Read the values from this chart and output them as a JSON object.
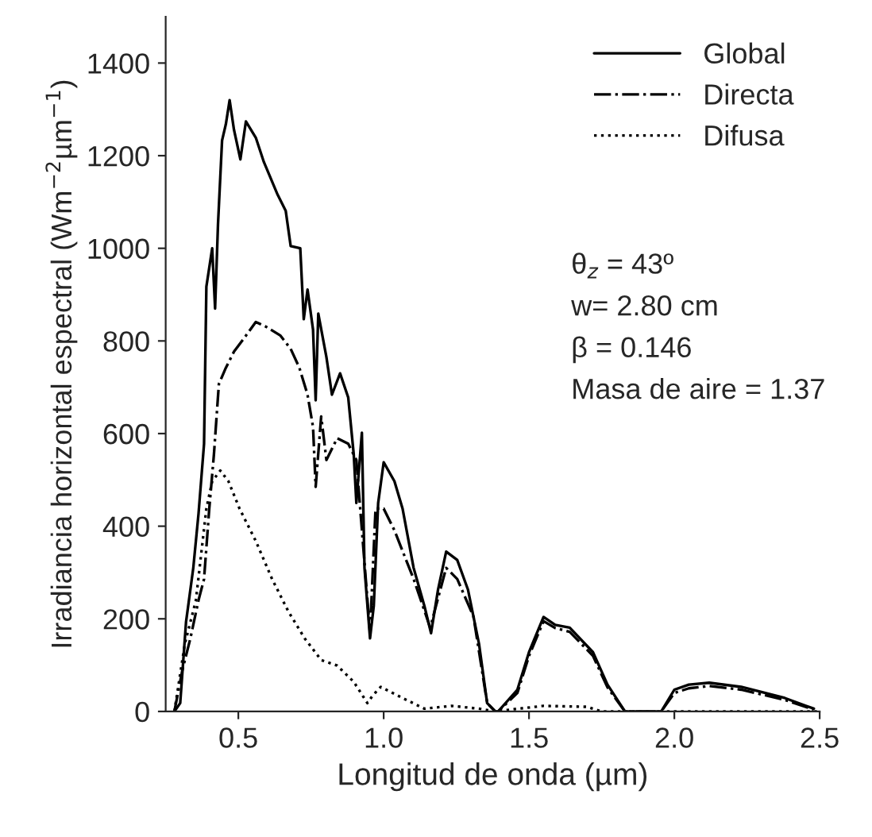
{
  "chart_data": {
    "type": "line",
    "xlabel": "Longitud de onda (µm)",
    "ylabel": "Irradiancia horizontal espectral (Wm$^{−2}$µm$^{−1}$)",
    "xlim": [
      0.25,
      2.5
    ],
    "xticks": [
      {
        "value": 0.5,
        "label": "0.5"
      },
      {
        "value": 1.0,
        "label": "1.0"
      },
      {
        "value": 1.5,
        "label": "1.5"
      },
      {
        "value": 2.0,
        "label": "2.0"
      },
      {
        "value": 2.5,
        "label": "2.5"
      }
    ],
    "ylim": [
      0,
      1500
    ],
    "yticks": [
      0,
      200,
      400,
      600,
      800,
      1000,
      1200,
      1400
    ],
    "grid": false,
    "legend": "top right",
    "marker": "none",
    "annotations": [
      "θ$_{z}$ = 43º",
      "w= 2.80 cm",
      "β = 0.146",
      "Masa de aire = 1.37"
    ],
    "series": [
      {
        "name": "Global",
        "color": "#000000",
        "line_style": "solid",
        "x": [
          0.28,
          0.3,
          0.32,
          0.345,
          0.363,
          0.382,
          0.39,
          0.41,
          0.42,
          0.43,
          0.444,
          0.457,
          0.47,
          0.485,
          0.507,
          0.526,
          0.56,
          0.588,
          0.635,
          0.663,
          0.68,
          0.713,
          0.725,
          0.738,
          0.757,
          0.766,
          0.775,
          0.803,
          0.822,
          0.85,
          0.878,
          0.897,
          0.906,
          0.925,
          0.934,
          0.953,
          0.966,
          0.981,
          1.0,
          1.037,
          1.065,
          1.103,
          1.14,
          1.163,
          1.187,
          1.215,
          1.253,
          1.29,
          1.328,
          1.356,
          1.384,
          1.394,
          1.46,
          1.5,
          1.55,
          1.59,
          1.64,
          1.72,
          1.77,
          1.83,
          1.955,
          2.0,
          2.05,
          2.12,
          2.23,
          2.38,
          2.48
        ],
        "values": [
          0,
          18,
          193,
          310,
          427,
          578,
          917,
          1000,
          870,
          1052,
          1233,
          1268,
          1320,
          1256,
          1192,
          1274,
          1239,
          1186,
          1116,
          1081,
          1005,
          1000,
          847,
          911,
          824,
          672,
          859,
          765,
          684,
          730,
          678,
          555,
          450,
          602,
          310,
          158,
          228,
          450,
          538,
          497,
          438,
          310,
          228,
          169,
          263,
          345,
          327,
          263,
          146,
          18,
          0,
          0,
          47,
          128,
          204,
          187,
          181,
          128,
          58,
          0,
          0,
          47,
          58,
          62,
          53,
          29,
          6
        ]
      },
      {
        "name": "Directa",
        "color": "#000000",
        "line_style": "dashdot",
        "x": [
          0.28,
          0.307,
          0.335,
          0.363,
          0.382,
          0.4,
          0.416,
          0.433,
          0.457,
          0.485,
          0.52,
          0.56,
          0.597,
          0.644,
          0.68,
          0.71,
          0.738,
          0.757,
          0.766,
          0.785,
          0.803,
          0.84,
          0.878,
          0.906,
          0.934,
          0.953,
          0.972,
          1.0,
          1.037,
          1.103,
          1.16,
          1.215,
          1.253,
          1.309,
          1.356,
          1.384,
          1.394,
          1.46,
          1.5,
          1.55,
          1.59,
          1.64,
          1.72,
          1.77,
          1.83,
          1.955,
          2.0,
          2.05,
          2.12,
          2.23,
          2.38,
          2.48
        ],
        "values": [
          0,
          88,
          158,
          240,
          286,
          438,
          555,
          707,
          742,
          777,
          806,
          841,
          830,
          812,
          783,
          742,
          684,
          614,
          485,
          637,
          543,
          590,
          578,
          543,
          321,
          169,
          438,
          438,
          391,
          286,
          181,
          310,
          286,
          205,
          18,
          0,
          0,
          40,
          120,
          195,
          180,
          172,
          120,
          52,
          0,
          0,
          40,
          50,
          55,
          47,
          25,
          4
        ]
      },
      {
        "name": "Difusa",
        "color": "#000000",
        "line_style": "dotted",
        "x": [
          0.28,
          0.316,
          0.354,
          0.39,
          0.41,
          0.438,
          0.466,
          0.504,
          0.56,
          0.616,
          0.672,
          0.728,
          0.785,
          0.84,
          0.897,
          0.944,
          0.963,
          0.99,
          1.065,
          1.14,
          1.234,
          1.328,
          1.384,
          1.45,
          1.55,
          1.7,
          1.75,
          2.0,
          2.5
        ],
        "values": [
          0,
          146,
          240,
          438,
          497,
          520,
          497,
          438,
          368,
          286,
          216,
          158,
          111,
          99,
          64,
          18,
          35,
          53,
          29,
          6,
          12,
          6,
          0,
          5,
          12,
          10,
          0,
          0,
          0
        ]
      }
    ]
  }
}
